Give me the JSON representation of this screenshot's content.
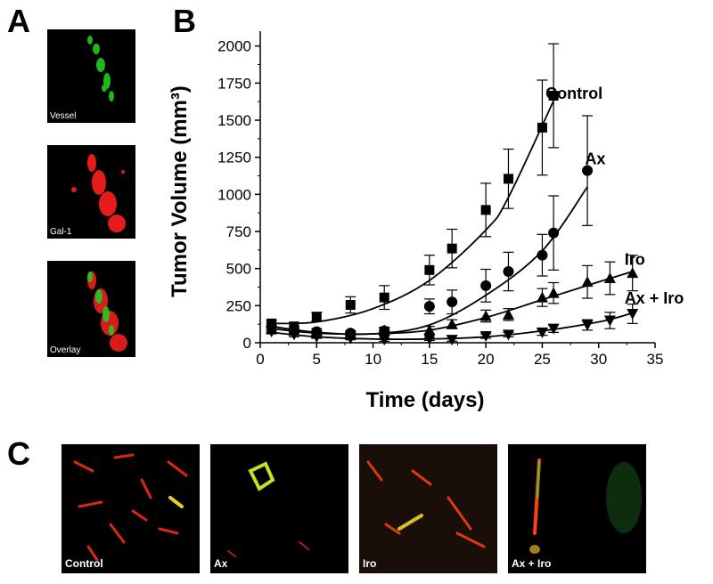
{
  "panel_labels": {
    "a": "A",
    "b": "B",
    "c": "C"
  },
  "panel_a": {
    "images": [
      {
        "label": "Vessel",
        "color": "#22cc22"
      },
      {
        "label": "Gal-1",
        "color": "#ff2020"
      },
      {
        "label": "Overlay",
        "color": "#ff2020",
        "overlay_color": "#22cc22"
      }
    ]
  },
  "panel_c": {
    "images": [
      {
        "label": "Control"
      },
      {
        "label": "Ax"
      },
      {
        "label": "Iro"
      },
      {
        "label": "Ax + Iro"
      }
    ]
  },
  "chart_data": {
    "type": "line",
    "xlabel": "Time (days)",
    "ylabel": "Tumor Volume (mm³)",
    "xlim": [
      0,
      35
    ],
    "ylim": [
      0,
      2100
    ],
    "xticks": [
      "0",
      "5",
      "10",
      "15",
      "20",
      "25",
      "30",
      "35"
    ],
    "yticks": [
      "0",
      "250",
      "500",
      "750",
      "1000",
      "1250",
      "1500",
      "1750",
      "2000"
    ],
    "grid": false,
    "series": [
      {
        "name": "Control",
        "marker": "square",
        "x": [
          1,
          3,
          5,
          8,
          11,
          15,
          17,
          20,
          22,
          25,
          26
        ],
        "y": [
          130,
          110,
          175,
          255,
          305,
          490,
          635,
          895,
          1105,
          1450,
          1665
        ],
        "err": [
          20,
          25,
          30,
          55,
          80,
          100,
          130,
          180,
          200,
          320,
          350
        ],
        "fit": [
          [
            1,
            130
          ],
          [
            5,
            140
          ],
          [
            10,
            230
          ],
          [
            15,
            420
          ],
          [
            20,
            760
          ],
          [
            22,
            980
          ],
          [
            26,
            1630
          ]
        ]
      },
      {
        "name": "Ax",
        "marker": "circle",
        "x": [
          1,
          3,
          5,
          8,
          11,
          15,
          17,
          20,
          22,
          25,
          26,
          29
        ],
        "y": [
          110,
          90,
          75,
          65,
          80,
          245,
          275,
          385,
          480,
          590,
          740,
          1160
        ],
        "err": [
          20,
          20,
          20,
          15,
          20,
          50,
          80,
          110,
          130,
          140,
          250,
          370
        ],
        "fit": [
          [
            1,
            110
          ],
          [
            5,
            70
          ],
          [
            10,
            60
          ],
          [
            15,
            120
          ],
          [
            20,
            320
          ],
          [
            25,
            620
          ],
          [
            29,
            1050
          ]
        ]
      },
      {
        "name": "Iro",
        "marker": "triangle-up",
        "x": [
          1,
          3,
          5,
          8,
          11,
          15,
          17,
          20,
          22,
          25,
          26,
          29,
          31,
          33
        ],
        "y": [
          95,
          80,
          65,
          55,
          85,
          85,
          125,
          180,
          190,
          305,
          335,
          410,
          435,
          470
        ],
        "err": [
          15,
          15,
          15,
          15,
          20,
          25,
          30,
          40,
          40,
          60,
          70,
          110,
          110,
          120
        ],
        "fit": [
          [
            1,
            95
          ],
          [
            5,
            65
          ],
          [
            10,
            60
          ],
          [
            15,
            85
          ],
          [
            20,
            170
          ],
          [
            25,
            290
          ],
          [
            30,
            410
          ],
          [
            33,
            480
          ]
        ]
      },
      {
        "name": "Ax + Iro",
        "marker": "triangle-down",
        "x": [
          1,
          3,
          5,
          8,
          11,
          15,
          17,
          20,
          22,
          25,
          26,
          29,
          31,
          33
        ],
        "y": [
          75,
          55,
          40,
          30,
          20,
          25,
          20,
          45,
          55,
          70,
          95,
          120,
          150,
          195
        ],
        "err": [
          15,
          15,
          10,
          10,
          10,
          10,
          10,
          15,
          15,
          20,
          25,
          35,
          55,
          65
        ],
        "fit": [
          [
            1,
            70
          ],
          [
            5,
            40
          ],
          [
            10,
            25
          ],
          [
            15,
            25
          ],
          [
            20,
            40
          ],
          [
            25,
            80
          ],
          [
            30,
            140
          ],
          [
            33,
            200
          ]
        ]
      }
    ]
  }
}
